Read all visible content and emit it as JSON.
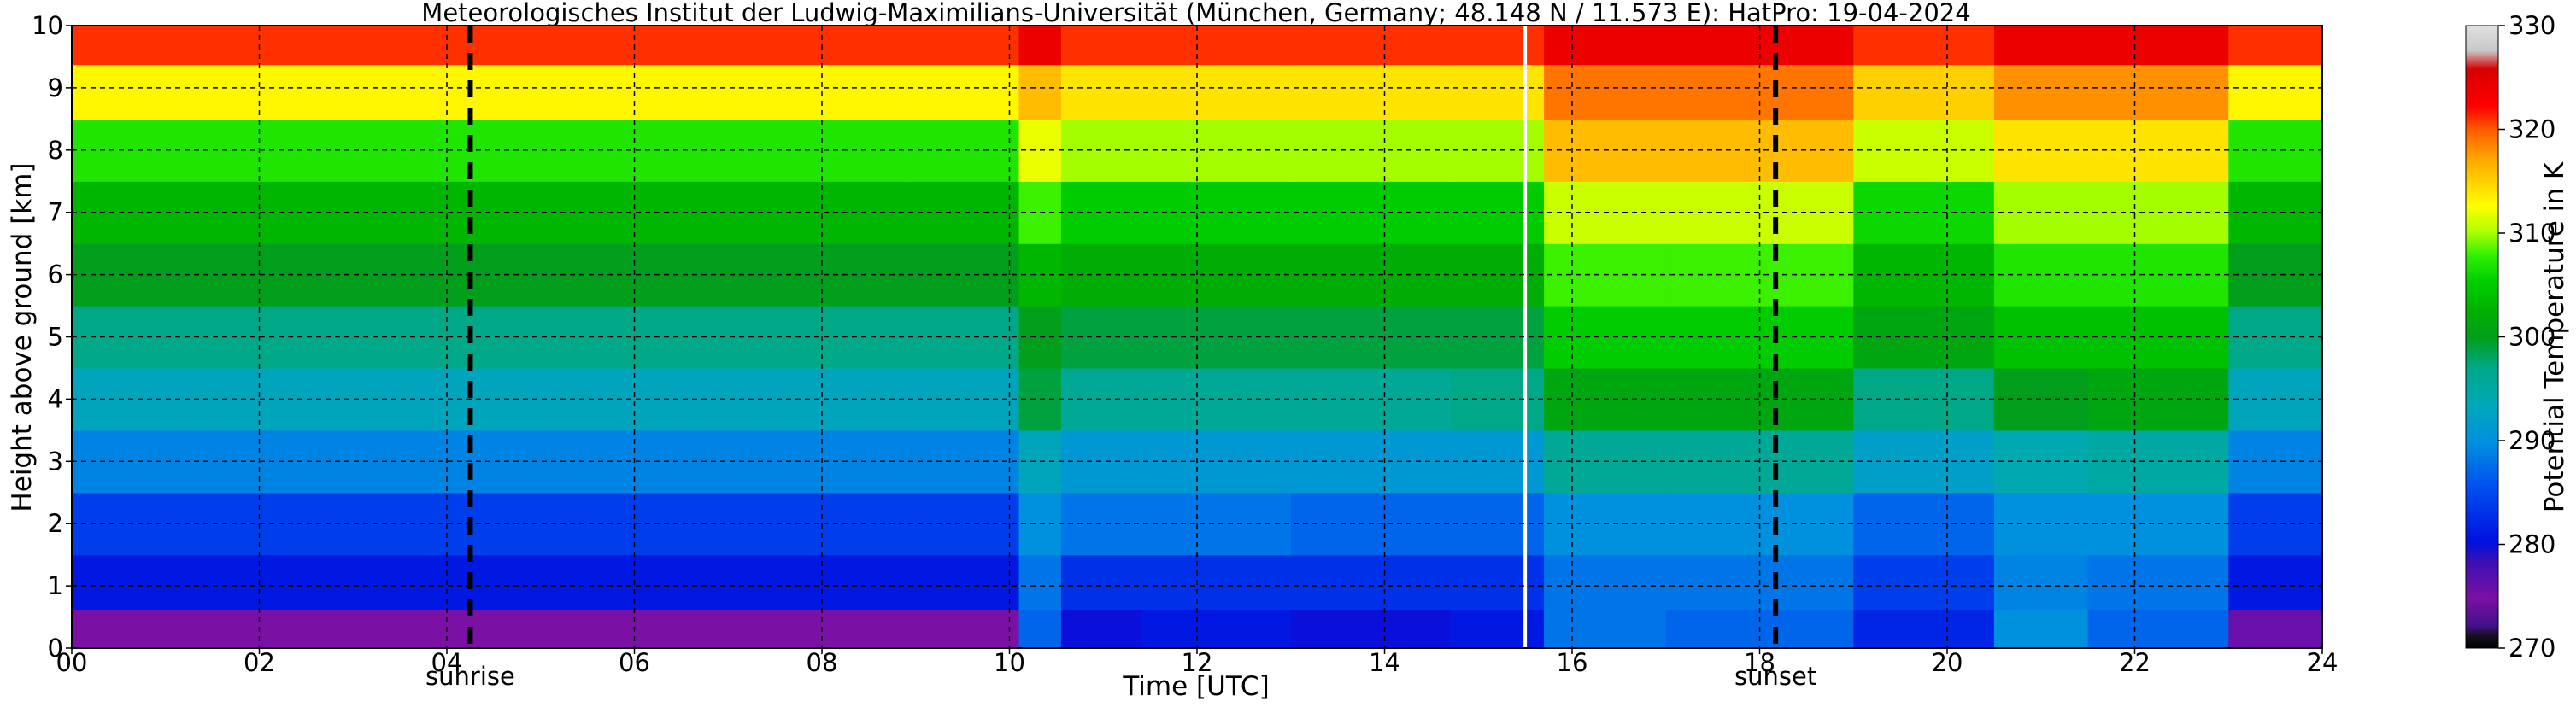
{
  "chart_data": {
    "type": "heatmap",
    "title": "Meteorologisches Institut der Ludwig-Maximilians-Universität (München, Germany; 48.148 N / 11.573 E):    HatPro: 19-04-2024",
    "xlabel": "Time [UTC]",
    "ylabel": "Height above ground [km]",
    "x_ticks": [
      "00",
      "02",
      "04",
      "06",
      "08",
      "10",
      "12",
      "14",
      "16",
      "18",
      "20",
      "22",
      "24"
    ],
    "y_ticks": [
      "0",
      "1",
      "2",
      "3",
      "4",
      "5",
      "6",
      "7",
      "8",
      "9",
      "10"
    ],
    "xlim": [
      0,
      24
    ],
    "ylim": [
      0,
      10
    ],
    "grid": true,
    "colorbar": {
      "label": "Potential Temperature in K",
      "ticks": [
        "270",
        "280",
        "290",
        "300",
        "310",
        "320",
        "330"
      ],
      "range": [
        270,
        330
      ]
    },
    "events": [
      {
        "label": "sunrise",
        "time": 4.25
      },
      {
        "label": "sunset",
        "time": 18.17
      }
    ],
    "data_gap_time": 15.5,
    "field_sample": {
      "heights_km": [
        0.25,
        1,
        2,
        3,
        4,
        5,
        6,
        7,
        8,
        9,
        9.75
      ],
      "times_utc": [
        0,
        4,
        8,
        9.9,
        10.3,
        10.8,
        12,
        14,
        15.4,
        16,
        18,
        20,
        21,
        22,
        24
      ],
      "theta_K": [
        [
          275,
          275,
          275,
          275,
          287,
          280,
          281,
          280,
          281,
          288,
          287,
          282,
          290,
          287,
          276
        ],
        [
          281,
          281,
          281,
          281,
          288,
          283,
          283,
          283,
          283,
          288,
          288,
          284,
          289,
          288,
          281
        ],
        [
          284,
          284,
          284,
          284,
          290,
          288,
          288,
          287,
          287,
          290,
          290,
          287,
          290,
          290,
          284
        ],
        [
          289,
          289,
          289,
          289,
          293,
          291,
          291,
          291,
          291,
          296,
          296,
          292,
          294,
          295,
          289
        ],
        [
          293,
          293,
          293,
          293,
          299,
          296,
          296,
          296,
          297,
          301,
          301,
          297,
          300,
          301,
          293
        ],
        [
          297,
          297,
          297,
          297,
          300,
          299,
          299,
          299,
          299,
          305,
          305,
          301,
          304,
          304,
          297
        ],
        [
          300,
          300,
          300,
          300,
          303,
          302,
          302,
          302,
          302,
          308,
          308,
          303,
          307,
          307,
          300
        ],
        [
          303,
          303,
          303,
          303,
          308,
          305,
          305,
          305,
          305,
          311,
          311,
          306,
          310,
          310,
          303
        ],
        [
          307,
          307,
          307,
          307,
          312,
          310,
          310,
          310,
          310,
          316,
          316,
          311,
          314,
          314,
          307
        ],
        [
          313,
          313,
          313,
          313,
          316,
          314,
          314,
          314,
          314,
          319,
          319,
          315,
          318,
          318,
          313
        ],
        [
          321,
          321,
          321,
          321,
          324,
          321,
          321,
          321,
          321,
          324,
          324,
          321,
          324,
          324,
          321
        ]
      ]
    }
  }
}
